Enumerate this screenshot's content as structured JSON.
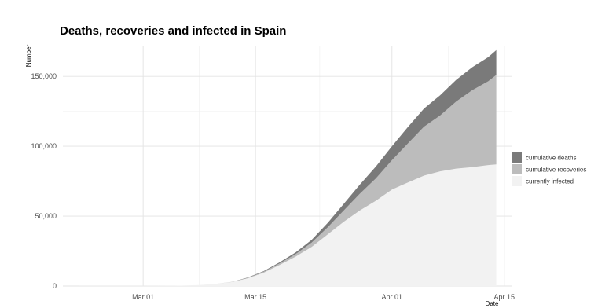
{
  "chart_data": {
    "type": "area",
    "stacked": true,
    "title": "Deaths, recoveries and infected in Spain",
    "xlabel": "Date",
    "ylabel": "Number",
    "x_ticks": [
      "Mar 01",
      "Mar 15",
      "Apr 01",
      "Apr 15"
    ],
    "y_ticks": [
      "0",
      "50,000",
      "100,000",
      "150,000"
    ],
    "y_tick_values": [
      0,
      50000,
      100000,
      150000
    ],
    "xlim": [
      "2020-02-20",
      "2020-04-16"
    ],
    "ylim": [
      0,
      172000
    ],
    "grid": true,
    "legend_position": "right",
    "x": [
      "2020-02-22",
      "2020-03-01",
      "2020-03-05",
      "2020-03-08",
      "2020-03-10",
      "2020-03-12",
      "2020-03-14",
      "2020-03-16",
      "2020-03-18",
      "2020-03-20",
      "2020-03-22",
      "2020-03-24",
      "2020-03-26",
      "2020-03-28",
      "2020-03-30",
      "2020-04-01",
      "2020-04-03",
      "2020-04-05",
      "2020-04-07",
      "2020-04-09",
      "2020-04-11",
      "2020-04-13",
      "2020-04-14"
    ],
    "series": [
      {
        "name": "currently infected",
        "color": "#f2f2f2",
        "values": [
          50,
          80,
          250,
          650,
          1500,
          2800,
          5500,
          9500,
          15000,
          21000,
          28000,
          37000,
          46000,
          54000,
          61000,
          69000,
          74000,
          79000,
          82000,
          84000,
          85000,
          86500,
          87000
        ]
      },
      {
        "name": "cumulative recoveries",
        "color": "#bcbcbc",
        "values": [
          0,
          0,
          0,
          0,
          0,
          100,
          300,
          700,
          1200,
          1800,
          3000,
          5000,
          8000,
          12000,
          16000,
          21000,
          28000,
          35000,
          40000,
          48000,
          55000,
          60000,
          64000
        ]
      },
      {
        "name": "cumulative deaths",
        "color": "#7a7a7a",
        "values": [
          0,
          0,
          0,
          0,
          30,
          80,
          200,
          400,
          700,
          1200,
          2000,
          3200,
          4800,
          6500,
          8500,
          10000,
          11800,
          13000,
          14500,
          15500,
          16500,
          17300,
          17800
        ]
      }
    ]
  }
}
